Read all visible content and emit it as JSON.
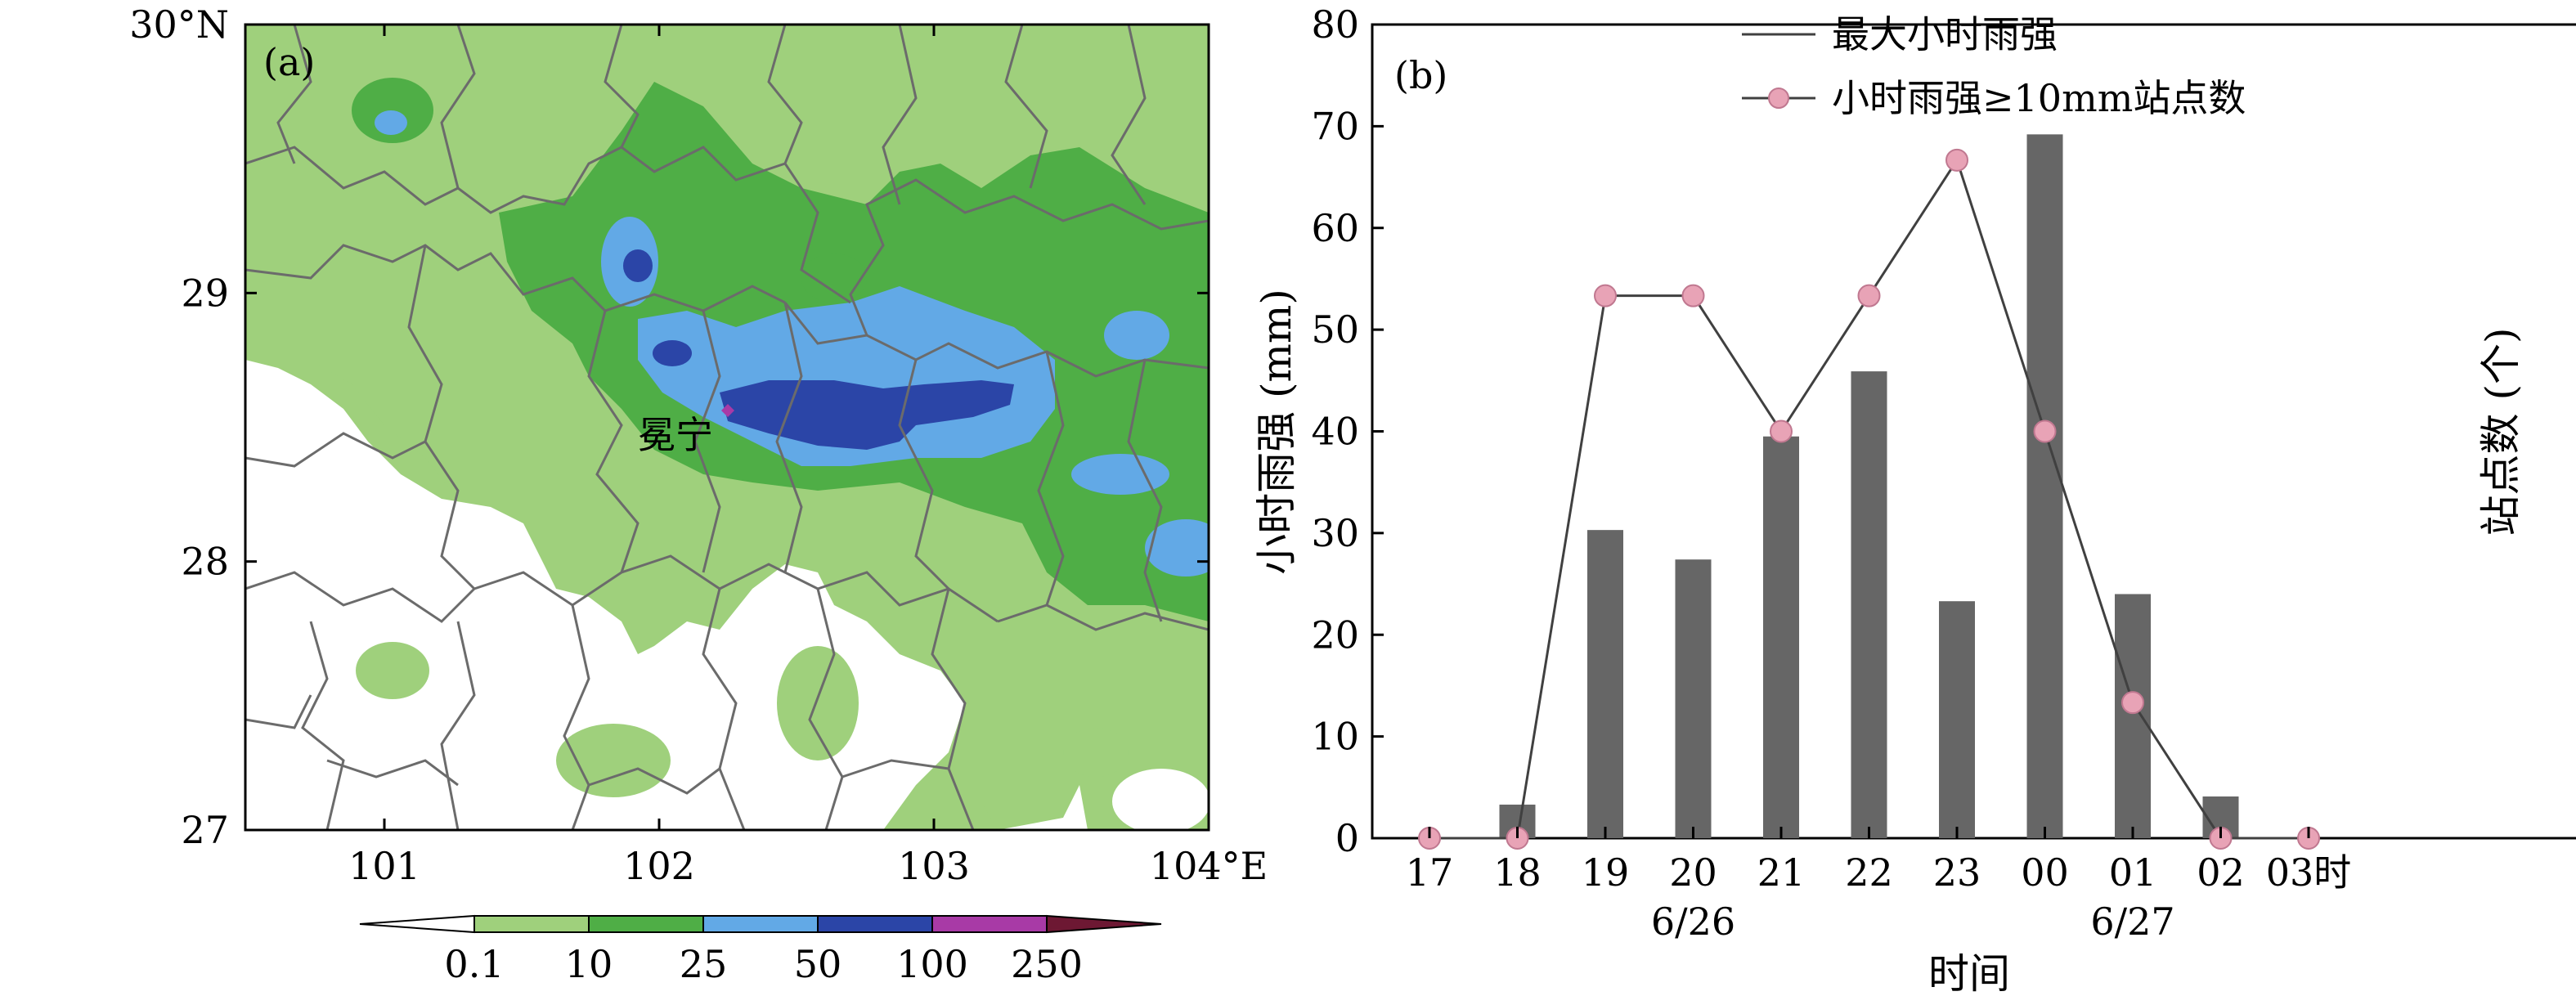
{
  "figure": {
    "panel_a_label": "(a)",
    "panel_b_label": "(b)"
  },
  "map": {
    "lat_labels": [
      "30°N",
      "29",
      "28",
      "27"
    ],
    "lon_labels": [
      "101",
      "102",
      "103",
      "104°E"
    ],
    "place_name": "冕宁",
    "colorbar": {
      "levels": [
        "0.1",
        "10",
        "25",
        "50",
        "100",
        "250"
      ],
      "colors": [
        "#ffffff",
        "#9fd07c",
        "#4fae46",
        "#62a9e6",
        "#2b45a7",
        "#a83aa6",
        "#6d1833"
      ]
    },
    "fill_colors": {
      "c10": "#9fd07c",
      "c25": "#4fae46",
      "c50": "#62a9e6",
      "c100": "#2b45a7",
      "marker": "#a83aa6",
      "border": "#6b6b6b"
    }
  },
  "chart_data": {
    "type": "bar",
    "categories": [
      "17",
      "18",
      "19",
      "20",
      "21",
      "22",
      "23",
      "00",
      "01",
      "02",
      "03"
    ],
    "x_unit_suffix": "时",
    "date_labels": [
      {
        "category": "20",
        "text": "6/26"
      },
      {
        "category": "01",
        "text": "6/27"
      }
    ],
    "xlabel": "时间",
    "ylabel": "小时雨强 (mm)",
    "y2label": "站点数 (个)",
    "ylim": [
      0,
      80
    ],
    "y2lim": [
      0,
      6
    ],
    "y_ticks": [
      "0",
      "10",
      "20",
      "30",
      "40",
      "50",
      "60",
      "70",
      "80"
    ],
    "y2_ticks": [
      "0",
      "1",
      "2",
      "3",
      "4",
      "5",
      "6"
    ],
    "series": [
      {
        "name": "最大小时雨强",
        "type": "bar",
        "axis": "left",
        "values": [
          0,
          3.3,
          30.3,
          27.4,
          39.5,
          45.9,
          23.3,
          69.2,
          24.0,
          4.1,
          0
        ],
        "color": "#666666"
      },
      {
        "name": "小时雨强≥10mm站点数",
        "type": "line",
        "axis": "right",
        "values": [
          0,
          0,
          4,
          4,
          3,
          4,
          5,
          3,
          1,
          0,
          0
        ],
        "color": "#404040",
        "marker_color": "#e8a3b6"
      }
    ],
    "legend_position": "top-right"
  }
}
